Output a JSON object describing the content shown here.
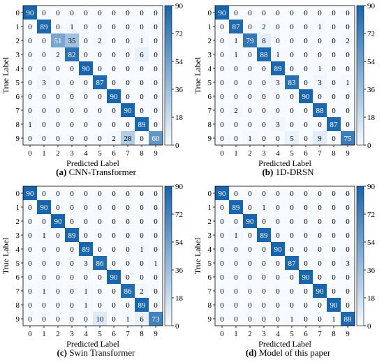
{
  "colors": {
    "high": "#1865ac",
    "low": "#f7fbff",
    "grid_line": "#ffffff",
    "frame": "#000000"
  },
  "chart_data": [
    {
      "type": "heatmap",
      "caption_letter": "(a)",
      "caption_text": " CNN-Transformer",
      "xlabel": "Predicted Label",
      "ylabel": "True Label",
      "x_ticks": [
        "0",
        "1",
        "2",
        "3",
        "4",
        "5",
        "6",
        "7",
        "8",
        "9"
      ],
      "y_ticks": [
        "0",
        "1",
        "2",
        "3",
        "4",
        "5",
        "6",
        "7",
        "8",
        "9"
      ],
      "colorbar_ticks": [
        "90",
        "72",
        "54",
        "36",
        "18",
        "0"
      ],
      "vmin": 0,
      "vmax": 90,
      "values": [
        [
          90,
          0,
          0,
          0,
          0,
          0,
          0,
          0,
          0,
          0
        ],
        [
          0,
          89,
          0,
          1,
          0,
          0,
          0,
          0,
          0,
          0
        ],
        [
          0,
          0,
          51,
          35,
          0,
          2,
          0,
          0,
          1,
          0
        ],
        [
          0,
          0,
          2,
          82,
          0,
          0,
          0,
          0,
          6,
          0
        ],
        [
          0,
          0,
          0,
          0,
          90,
          0,
          0,
          0,
          0,
          0
        ],
        [
          0,
          3,
          0,
          0,
          0,
          87,
          0,
          0,
          0,
          0
        ],
        [
          0,
          0,
          0,
          0,
          0,
          0,
          90,
          0,
          0,
          0
        ],
        [
          0,
          0,
          0,
          0,
          0,
          0,
          0,
          90,
          0,
          0
        ],
        [
          1,
          0,
          0,
          0,
          0,
          0,
          0,
          0,
          89,
          0
        ],
        [
          0,
          0,
          0,
          0,
          0,
          0,
          2,
          28,
          0,
          60
        ]
      ]
    },
    {
      "type": "heatmap",
      "caption_letter": "(b)",
      "caption_text": " 1D-DRSN",
      "xlabel": "Predicted Label",
      "ylabel": "True Label",
      "x_ticks": [
        "0",
        "1",
        "2",
        "3",
        "4",
        "5",
        "6",
        "7",
        "8",
        "9"
      ],
      "y_ticks": [
        "0",
        "1",
        "2",
        "3",
        "4",
        "5",
        "6",
        "7",
        "8",
        "9"
      ],
      "colorbar_ticks": [
        "90",
        "72",
        "54",
        "36",
        "18",
        "0"
      ],
      "vmin": 0,
      "vmax": 90,
      "values": [
        [
          90,
          0,
          0,
          0,
          0,
          0,
          0,
          0,
          0,
          0
        ],
        [
          0,
          87,
          0,
          2,
          0,
          0,
          0,
          1,
          0,
          0
        ],
        [
          0,
          1,
          79,
          8,
          0,
          0,
          0,
          0,
          0,
          2
        ],
        [
          0,
          1,
          0,
          88,
          1,
          0,
          0,
          0,
          0,
          0
        ],
        [
          0,
          0,
          0,
          0,
          89,
          0,
          0,
          1,
          0,
          0
        ],
        [
          0,
          0,
          0,
          0,
          3,
          83,
          0,
          3,
          0,
          1
        ],
        [
          0,
          0,
          0,
          0,
          0,
          0,
          90,
          0,
          0,
          0
        ],
        [
          0,
          2,
          0,
          0,
          0,
          0,
          0,
          88,
          0,
          0
        ],
        [
          0,
          0,
          0,
          0,
          3,
          0,
          0,
          0,
          87,
          0
        ],
        [
          0,
          0,
          1,
          0,
          0,
          5,
          0,
          9,
          0,
          75
        ]
      ]
    },
    {
      "type": "heatmap",
      "caption_letter": "(c)",
      "caption_text": " Swin Transformer",
      "xlabel": "Predicted Label",
      "ylabel": "True Label",
      "x_ticks": [
        "0",
        "1",
        "2",
        "3",
        "4",
        "5",
        "6",
        "7",
        "8",
        "9"
      ],
      "y_ticks": [
        "0",
        "1",
        "2",
        "3",
        "4",
        "5",
        "6",
        "7",
        "8",
        "9"
      ],
      "colorbar_ticks": [
        "90",
        "72",
        "54",
        "36",
        "18",
        "0"
      ],
      "vmin": 0,
      "vmax": 90,
      "values": [
        [
          90,
          0,
          0,
          0,
          0,
          0,
          0,
          0,
          0,
          0
        ],
        [
          0,
          90,
          0,
          0,
          0,
          0,
          0,
          0,
          0,
          0
        ],
        [
          0,
          0,
          90,
          0,
          0,
          0,
          0,
          0,
          0,
          0
        ],
        [
          0,
          1,
          0,
          89,
          0,
          0,
          0,
          0,
          0,
          0
        ],
        [
          0,
          0,
          0,
          0,
          89,
          0,
          0,
          0,
          1,
          0
        ],
        [
          0,
          0,
          0,
          0,
          3,
          86,
          0,
          0,
          0,
          1
        ],
        [
          0,
          0,
          0,
          0,
          0,
          0,
          90,
          0,
          0,
          0
        ],
        [
          0,
          1,
          0,
          0,
          1,
          0,
          0,
          86,
          2,
          0
        ],
        [
          0,
          0,
          0,
          0,
          1,
          0,
          0,
          0,
          89,
          0
        ],
        [
          0,
          0,
          0,
          0,
          0,
          10,
          0,
          1,
          6,
          73
        ]
      ]
    },
    {
      "type": "heatmap",
      "caption_letter": "(d)",
      "caption_text": " Model of this paper",
      "xlabel": "Predicted Label",
      "ylabel": "True Label",
      "x_ticks": [
        "0",
        "1",
        "2",
        "3",
        "4",
        "5",
        "6",
        "7",
        "8",
        "9"
      ],
      "y_ticks": [
        "0",
        "1",
        "2",
        "3",
        "4",
        "5",
        "6",
        "7",
        "8",
        "9"
      ],
      "colorbar_ticks": [
        "90",
        "72",
        "54",
        "36",
        "18",
        "0"
      ],
      "vmin": 0,
      "vmax": 90,
      "values": [
        [
          90,
          0,
          0,
          0,
          0,
          0,
          0,
          0,
          0,
          0
        ],
        [
          0,
          89,
          0,
          1,
          0,
          0,
          0,
          0,
          0,
          0
        ],
        [
          0,
          0,
          90,
          0,
          0,
          0,
          0,
          0,
          0,
          0
        ],
        [
          0,
          1,
          0,
          89,
          0,
          0,
          0,
          0,
          0,
          0
        ],
        [
          0,
          0,
          0,
          0,
          90,
          0,
          0,
          0,
          0,
          0
        ],
        [
          0,
          0,
          0,
          0,
          0,
          87,
          0,
          0,
          0,
          3
        ],
        [
          0,
          0,
          0,
          0,
          0,
          0,
          90,
          0,
          0,
          0
        ],
        [
          0,
          0,
          0,
          0,
          0,
          0,
          0,
          90,
          0,
          0
        ],
        [
          0,
          0,
          0,
          0,
          0,
          0,
          0,
          0,
          90,
          0
        ],
        [
          0,
          0,
          0,
          0,
          0,
          1,
          0,
          0,
          1,
          88
        ]
      ]
    }
  ]
}
